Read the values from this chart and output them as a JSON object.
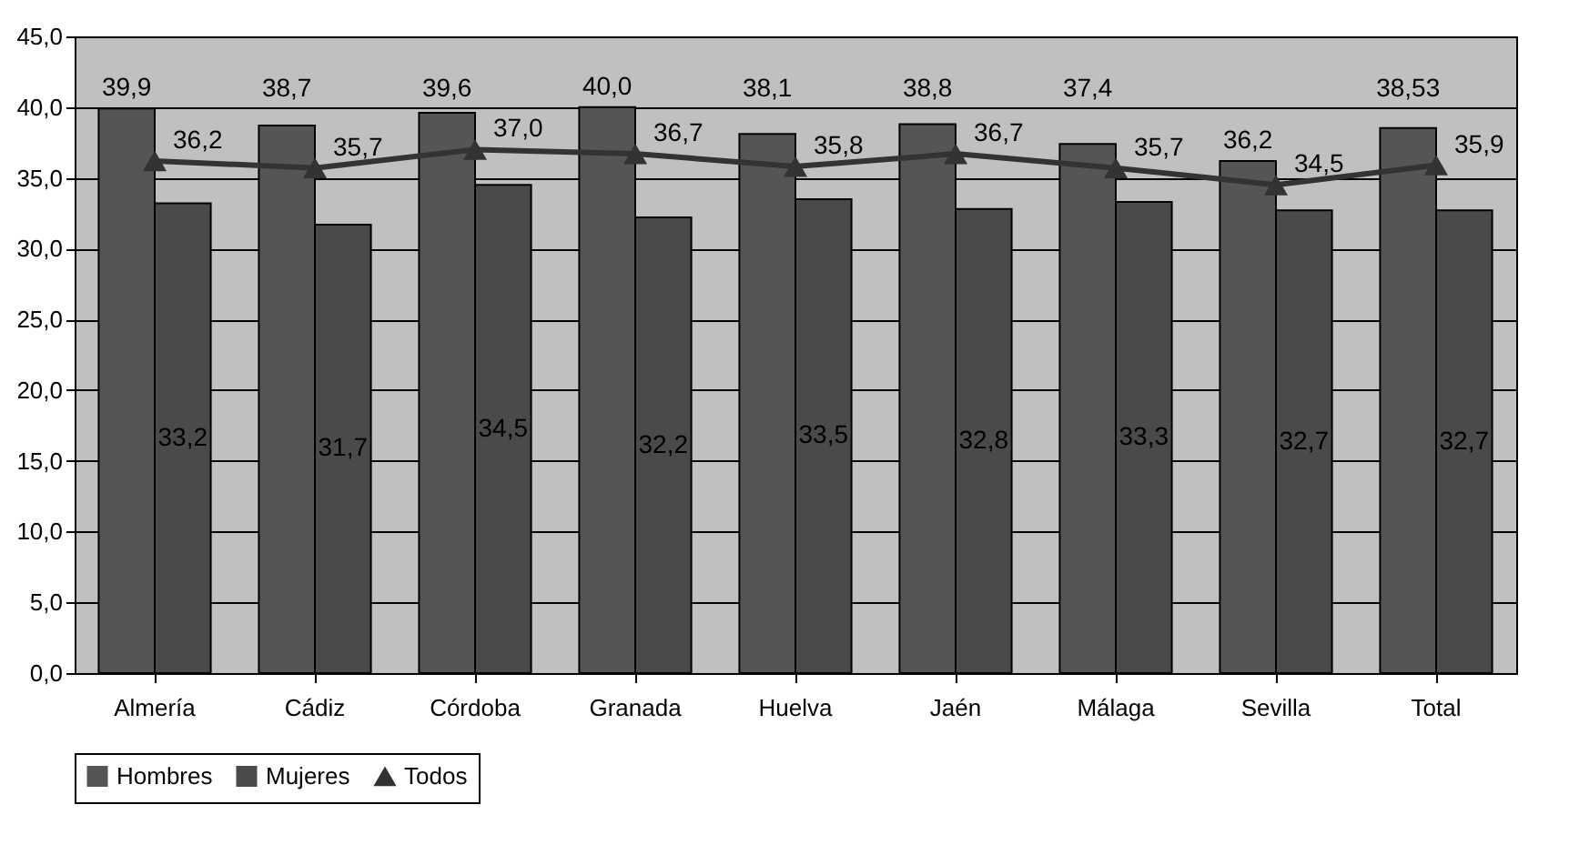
{
  "chart_data": {
    "type": "bar",
    "categories": [
      "Almería",
      "Cádiz",
      "Córdoba",
      "Granada",
      "Huelva",
      "Jaén",
      "Málaga",
      "Sevilla",
      "Total"
    ],
    "series": [
      {
        "name": "Hombres",
        "color": "#555555",
        "values": [
          39.9,
          38.7,
          39.6,
          40.0,
          38.1,
          38.8,
          37.4,
          36.2,
          38.53
        ],
        "value_labels": [
          "39,9",
          "38,7",
          "39,6",
          "40,0",
          "38,1",
          "38,8",
          "37,4",
          "36,2",
          "38,53"
        ]
      },
      {
        "name": "Mujeres",
        "color": "#4a4a4a",
        "values": [
          33.2,
          31.7,
          34.5,
          32.2,
          33.5,
          32.8,
          33.3,
          32.7,
          32.7
        ],
        "value_labels": [
          "33,2",
          "31,7",
          "34,5",
          "32,2",
          "33,5",
          "32,8",
          "33,3",
          "32,7",
          "32,7"
        ]
      },
      {
        "name": "Todos",
        "type": "line",
        "color": "#333333",
        "marker": "triangle",
        "values": [
          36.2,
          35.7,
          37.0,
          36.7,
          35.8,
          36.7,
          35.7,
          34.5,
          35.9
        ],
        "value_labels": [
          "36,2",
          "35,7",
          "37,0",
          "36,7",
          "35,8",
          "36,7",
          "35,7",
          "34,5",
          "35,9"
        ]
      }
    ],
    "ylim": [
      0,
      45
    ],
    "yticks": [
      {
        "value": 0,
        "label": "0,0"
      },
      {
        "value": 5,
        "label": "5,0"
      },
      {
        "value": 10,
        "label": "10,0"
      },
      {
        "value": 15,
        "label": "15,0"
      },
      {
        "value": 20,
        "label": "20,0"
      },
      {
        "value": 25,
        "label": "25,0"
      },
      {
        "value": 30,
        "label": "30,0"
      },
      {
        "value": 35,
        "label": "35,0"
      },
      {
        "value": 40,
        "label": "40,0"
      },
      {
        "value": 45,
        "label": "45,0"
      }
    ],
    "grid": "y",
    "legend": "bottom"
  }
}
